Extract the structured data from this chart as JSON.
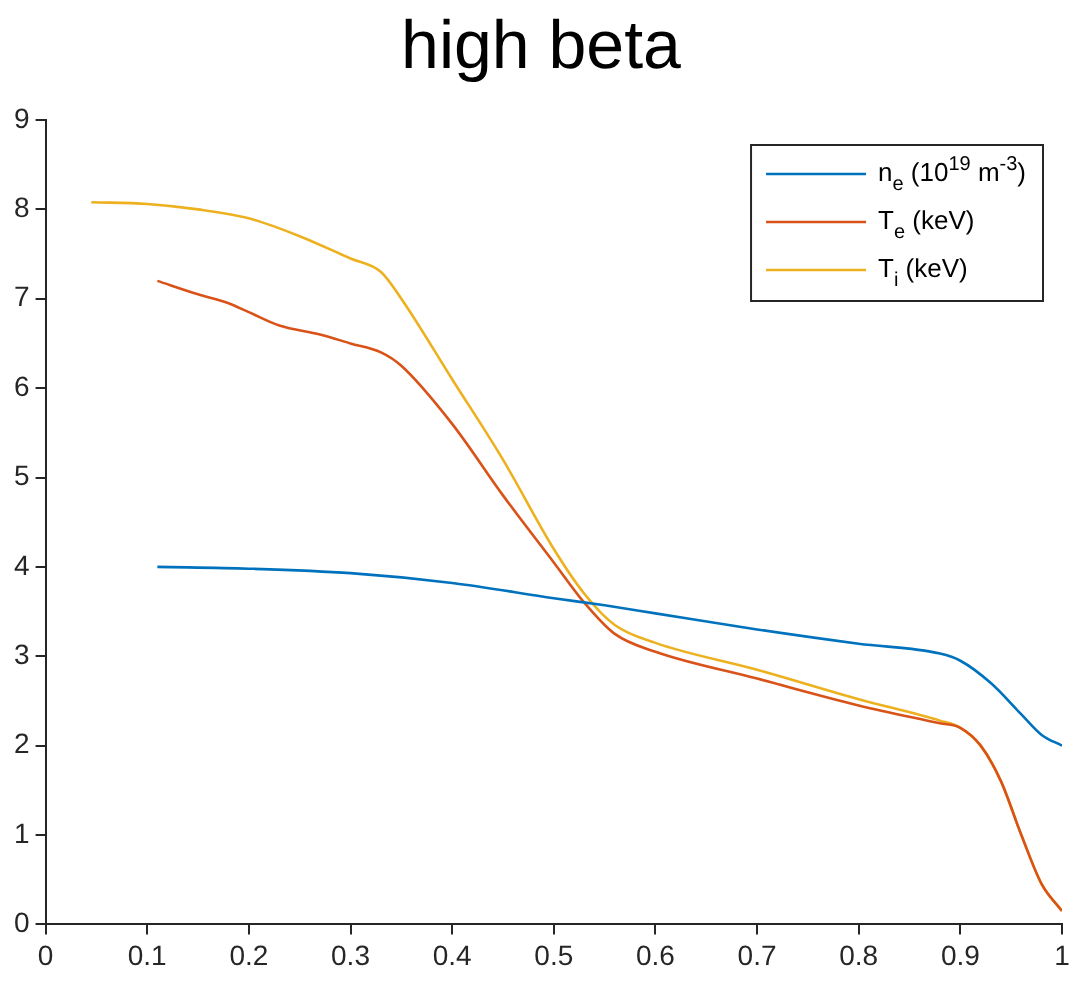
{
  "chart_data": {
    "type": "line",
    "title": "high beta",
    "xlim": [
      0,
      1
    ],
    "xticks": [
      0,
      0.1,
      0.2,
      0.3,
      0.4,
      0.5,
      0.6,
      0.7,
      0.8,
      0.9,
      1
    ],
    "ylim": [
      0,
      9
    ],
    "yticks": [
      0,
      1,
      2,
      3,
      4,
      5,
      6,
      7,
      8,
      9
    ],
    "grid": false,
    "legend": "top right",
    "marker": "none",
    "line_style": "solid",
    "series": [
      {
        "name": "n$_{e}$ (10$^{19}$ m$^{-3}$)",
        "color": "#0072bd",
        "x": [
          0.11,
          0.2,
          0.3,
          0.4,
          0.5,
          0.55,
          0.6,
          0.7,
          0.8,
          0.88,
          0.9,
          0.93,
          0.96,
          0.98,
          1.0
        ],
        "values": [
          4.0,
          3.98,
          3.93,
          3.82,
          3.65,
          3.57,
          3.48,
          3.3,
          3.14,
          3.03,
          2.95,
          2.7,
          2.35,
          2.12,
          2.0
        ]
      },
      {
        "name": "T$_{e}$ (keV)",
        "color": "#d95319",
        "x": [
          0.11,
          0.15,
          0.18,
          0.2,
          0.23,
          0.27,
          0.3,
          0.33,
          0.35,
          0.4,
          0.45,
          0.5,
          0.53,
          0.56,
          0.6,
          0.7,
          0.8,
          0.88,
          0.9,
          0.92,
          0.94,
          0.96,
          0.98,
          1.0
        ],
        "values": [
          7.2,
          7.05,
          6.95,
          6.85,
          6.7,
          6.6,
          6.5,
          6.4,
          6.25,
          5.6,
          4.8,
          4.05,
          3.6,
          3.25,
          3.05,
          2.75,
          2.45,
          2.25,
          2.2,
          2.0,
          1.6,
          1.0,
          0.45,
          0.15
        ]
      },
      {
        "name": "T$_{i}$ (keV)",
        "color": "#edb120",
        "x": [
          0.045,
          0.1,
          0.15,
          0.2,
          0.25,
          0.3,
          0.33,
          0.35,
          0.4,
          0.45,
          0.5,
          0.53,
          0.56,
          0.6,
          0.7,
          0.8,
          0.88,
          0.9,
          0.92,
          0.94,
          0.96,
          0.98,
          1.0
        ],
        "values": [
          8.08,
          8.06,
          8.0,
          7.9,
          7.7,
          7.45,
          7.3,
          7.0,
          6.1,
          5.2,
          4.2,
          3.7,
          3.35,
          3.15,
          2.85,
          2.52,
          2.28,
          2.2,
          2.0,
          1.6,
          1.0,
          0.45,
          0.15
        ]
      }
    ]
  }
}
